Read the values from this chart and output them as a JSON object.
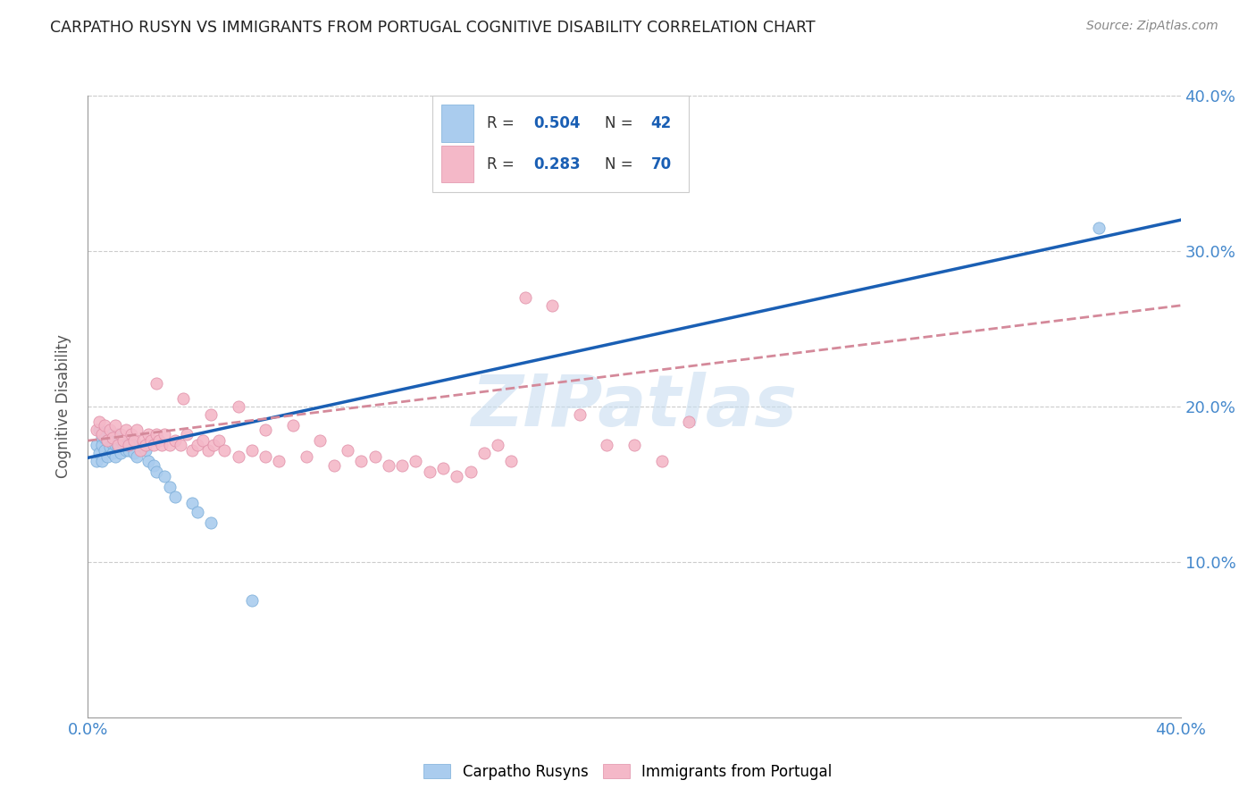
{
  "title": "CARPATHO RUSYN VS IMMIGRANTS FROM PORTUGAL COGNITIVE DISABILITY CORRELATION CHART",
  "source": "Source: ZipAtlas.com",
  "ylabel": "Cognitive Disability",
  "xlim": [
    0.0,
    0.4
  ],
  "ylim": [
    0.0,
    0.4
  ],
  "xtick_values": [
    0.0,
    0.1,
    0.2,
    0.3,
    0.4
  ],
  "xtick_labels": [
    "0.0%",
    "",
    "",
    "",
    "40.0%"
  ],
  "ytick_values_right": [
    0.1,
    0.2,
    0.3,
    0.4
  ],
  "ytick_labels_right": [
    "10.0%",
    "20.0%",
    "30.0%",
    "40.0%"
  ],
  "legend_label1": "Carpatho Rusyns",
  "legend_label2": "Immigrants from Portugal",
  "R1": "0.504",
  "N1": "42",
  "R2": "0.283",
  "N2": "70",
  "color_blue": "#aaccee",
  "color_pink": "#f4b8c8",
  "color_blue_line": "#1a5fb4",
  "color_pink_line": "#d4899a",
  "watermark_color": "#c8ddf0",
  "background_color": "#ffffff",
  "grid_color": "#cccccc",
  "blue_scatter_x": [
    0.003,
    0.003,
    0.004,
    0.004,
    0.005,
    0.005,
    0.005,
    0.006,
    0.006,
    0.007,
    0.007,
    0.008,
    0.008,
    0.009,
    0.009,
    0.01,
    0.01,
    0.01,
    0.011,
    0.011,
    0.012,
    0.012,
    0.013,
    0.014,
    0.015,
    0.015,
    0.016,
    0.017,
    0.018,
    0.02,
    0.021,
    0.022,
    0.024,
    0.025,
    0.028,
    0.03,
    0.032,
    0.038,
    0.04,
    0.045,
    0.06,
    0.37
  ],
  "blue_scatter_y": [
    0.175,
    0.165,
    0.185,
    0.17,
    0.18,
    0.175,
    0.165,
    0.18,
    0.172,
    0.178,
    0.168,
    0.182,
    0.174,
    0.176,
    0.17,
    0.18,
    0.175,
    0.168,
    0.182,
    0.174,
    0.178,
    0.17,
    0.175,
    0.172,
    0.178,
    0.172,
    0.176,
    0.17,
    0.168,
    0.174,
    0.172,
    0.165,
    0.162,
    0.158,
    0.155,
    0.148,
    0.142,
    0.138,
    0.132,
    0.125,
    0.075,
    0.315
  ],
  "pink_scatter_x": [
    0.003,
    0.004,
    0.005,
    0.006,
    0.007,
    0.008,
    0.009,
    0.01,
    0.011,
    0.012,
    0.013,
    0.014,
    0.015,
    0.016,
    0.017,
    0.018,
    0.019,
    0.02,
    0.021,
    0.022,
    0.023,
    0.024,
    0.025,
    0.026,
    0.027,
    0.028,
    0.03,
    0.032,
    0.034,
    0.036,
    0.038,
    0.04,
    0.042,
    0.044,
    0.046,
    0.048,
    0.05,
    0.055,
    0.06,
    0.065,
    0.07,
    0.08,
    0.09,
    0.1,
    0.11,
    0.12,
    0.13,
    0.14,
    0.15,
    0.16,
    0.17,
    0.18,
    0.19,
    0.2,
    0.21,
    0.22,
    0.025,
    0.035,
    0.045,
    0.055,
    0.065,
    0.075,
    0.085,
    0.095,
    0.105,
    0.115,
    0.125,
    0.135,
    0.145,
    0.155
  ],
  "pink_scatter_y": [
    0.185,
    0.19,
    0.182,
    0.188,
    0.178,
    0.185,
    0.18,
    0.188,
    0.175,
    0.182,
    0.178,
    0.185,
    0.175,
    0.182,
    0.178,
    0.185,
    0.172,
    0.178,
    0.175,
    0.182,
    0.178,
    0.175,
    0.182,
    0.178,
    0.175,
    0.182,
    0.175,
    0.178,
    0.175,
    0.182,
    0.172,
    0.175,
    0.178,
    0.172,
    0.175,
    0.178,
    0.172,
    0.168,
    0.172,
    0.168,
    0.165,
    0.168,
    0.162,
    0.165,
    0.162,
    0.165,
    0.16,
    0.158,
    0.175,
    0.27,
    0.265,
    0.195,
    0.175,
    0.175,
    0.165,
    0.19,
    0.215,
    0.205,
    0.195,
    0.2,
    0.185,
    0.188,
    0.178,
    0.172,
    0.168,
    0.162,
    0.158,
    0.155,
    0.17,
    0.165
  ],
  "blue_line_x0": 0.0,
  "blue_line_x1": 0.4,
  "blue_line_y0": 0.167,
  "blue_line_y1": 0.32,
  "pink_line_x0": 0.0,
  "pink_line_x1": 0.4,
  "pink_line_y0": 0.178,
  "pink_line_y1": 0.265
}
